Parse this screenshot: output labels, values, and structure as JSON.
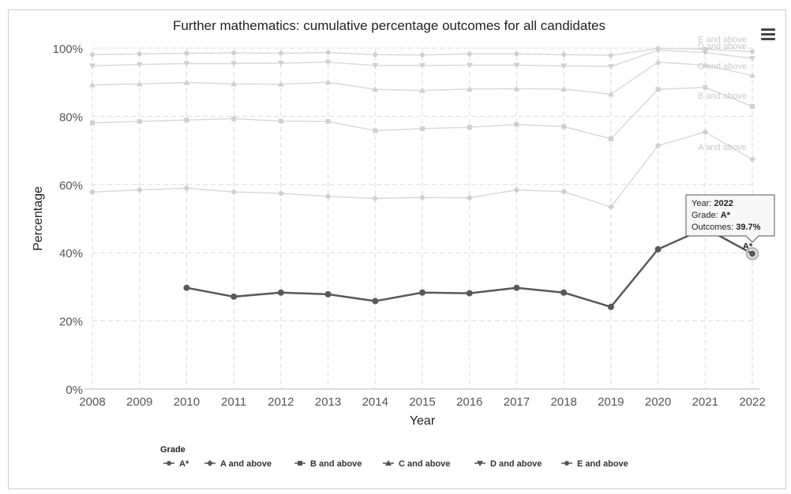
{
  "chart_data": {
    "type": "line",
    "title": "Further mathematics: cumulative percentage outcomes for all candidates",
    "xlabel": "Year",
    "ylabel": "Percentage",
    "x": [
      "2008",
      "2009",
      "2010",
      "2011",
      "2012",
      "2013",
      "2014",
      "2015",
      "2016",
      "2017",
      "2018",
      "2019",
      "2020",
      "2021",
      "2022"
    ],
    "ylim": [
      0,
      100
    ],
    "yticks": [
      "0%",
      "20%",
      "40%",
      "60%",
      "80%",
      "100%"
    ],
    "ytick_values": [
      0,
      20,
      40,
      60,
      80,
      100
    ],
    "grid": true,
    "legend_title": "Grade",
    "legend_position": "bottom",
    "series": [
      {
        "name": "A*",
        "marker": "circle",
        "color": "#595959",
        "highlighted": true,
        "values": [
          null,
          null,
          29.7,
          27.1,
          28.3,
          27.8,
          25.8,
          28.3,
          28.1,
          29.7,
          28.3,
          24.1,
          41.0,
          47.2,
          39.7
        ]
      },
      {
        "name": "A and above",
        "marker": "diamond",
        "color": "#d9d9d9",
        "values": [
          57.8,
          58.4,
          58.9,
          57.8,
          57.4,
          56.5,
          55.9,
          56.2,
          56.1,
          58.4,
          57.9,
          53.4,
          71.4,
          75.4,
          67.4
        ]
      },
      {
        "name": "B and above",
        "marker": "square",
        "color": "#d9d9d9",
        "values": [
          78.1,
          78.5,
          78.9,
          79.3,
          78.6,
          78.5,
          75.8,
          76.4,
          76.8,
          77.6,
          77.0,
          73.4,
          87.9,
          88.5,
          82.9
        ]
      },
      {
        "name": "C and above",
        "marker": "triangle-up",
        "color": "#d9d9d9",
        "values": [
          89.2,
          89.5,
          89.9,
          89.5,
          89.4,
          90.0,
          87.9,
          87.6,
          88.0,
          88.1,
          88.0,
          86.5,
          95.9,
          95.0,
          92.0
        ]
      },
      {
        "name": "D and above",
        "marker": "triangle-down",
        "color": "#d9d9d9",
        "values": [
          94.8,
          95.2,
          95.5,
          95.5,
          95.6,
          95.9,
          94.9,
          94.9,
          95.0,
          95.0,
          94.8,
          94.6,
          99.4,
          98.7,
          97.0
        ]
      },
      {
        "name": "E and above",
        "marker": "circle",
        "color": "#d9d9d9",
        "values": [
          98.1,
          98.3,
          98.5,
          98.6,
          98.5,
          98.7,
          98.1,
          98.0,
          98.3,
          98.3,
          98.1,
          97.9,
          99.9,
          99.7,
          99.0
        ]
      }
    ],
    "end_labels": [
      "E and above",
      "D and above",
      "C and above",
      "B and above",
      "A and above",
      "A*"
    ],
    "tooltip": {
      "year_label": "Year:",
      "year_value": "2022",
      "grade_label": "Grade:",
      "grade_value": "A*",
      "outcome_label": "Outcomes:",
      "outcome_value": "39.7%"
    }
  },
  "menu": {
    "icon": "hamburger-menu-icon"
  }
}
